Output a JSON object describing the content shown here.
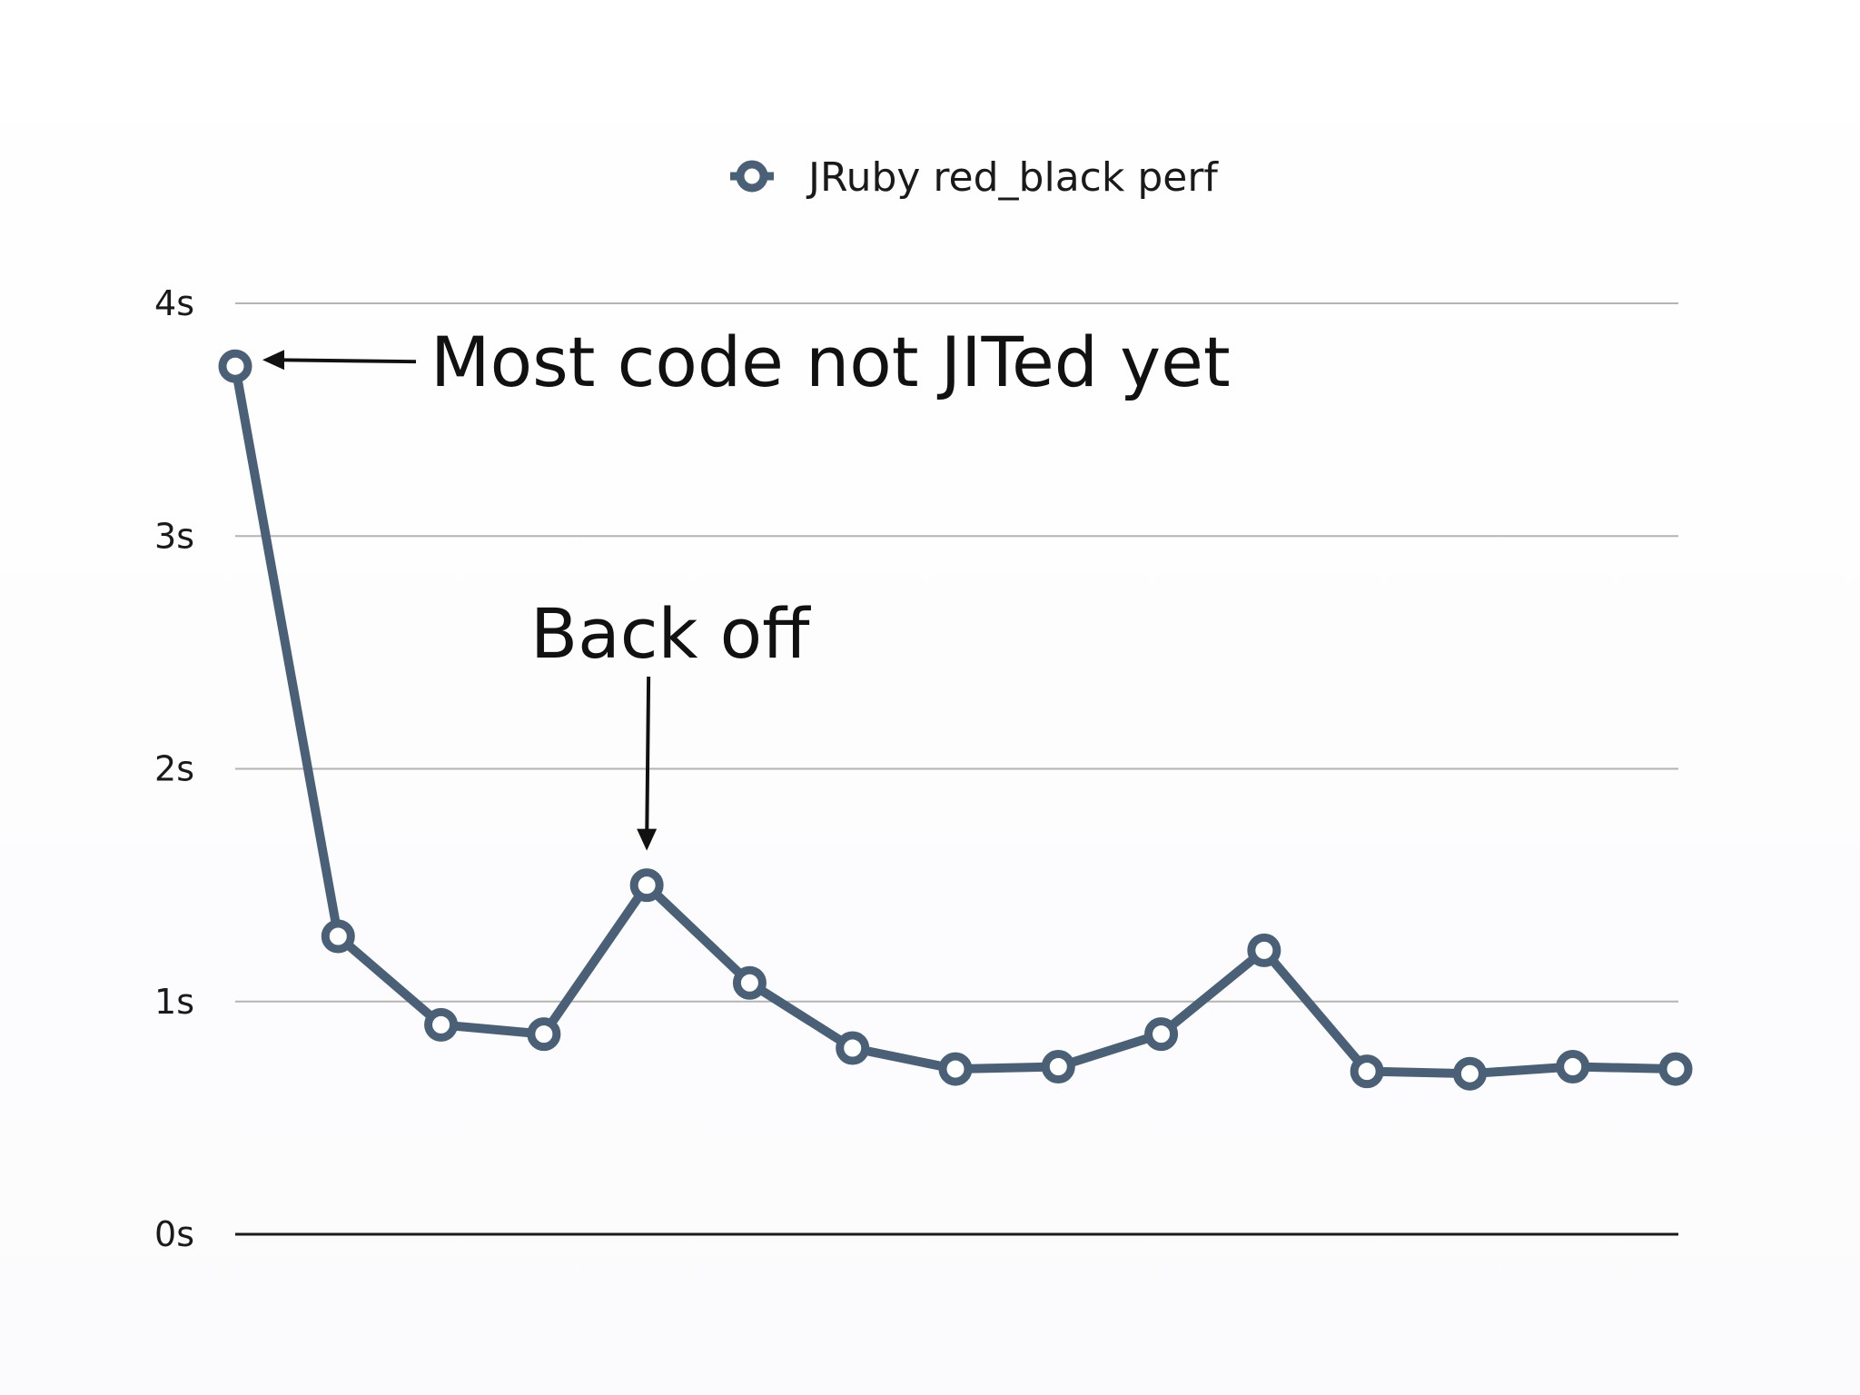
{
  "chart_data": {
    "type": "line",
    "title": "",
    "xlabel": "",
    "ylabel": "",
    "ylim": [
      0,
      4
    ],
    "y_ticks": [
      "0s",
      "1s",
      "2s",
      "3s",
      "4s"
    ],
    "grid": true,
    "legend_position": "top-center",
    "x": [
      1,
      2,
      3,
      4,
      5,
      6,
      7,
      8,
      9,
      10,
      11,
      12,
      13,
      14,
      15
    ],
    "series": [
      {
        "name": "JRuby red_black perf",
        "values": [
          3.73,
          1.28,
          0.9,
          0.86,
          1.5,
          1.08,
          0.8,
          0.71,
          0.72,
          0.86,
          1.22,
          0.7,
          0.69,
          0.72,
          0.71
        ]
      }
    ],
    "annotations": [
      {
        "text": "Most code not JITed yet",
        "point_index": 0
      },
      {
        "text": "Back off",
        "point_index": 4
      }
    ]
  },
  "colors": {
    "series": "#4a6077",
    "grid": "#b4b4b4",
    "axis": "#1a1a1a",
    "marker_fill": "#ffffff",
    "text": "#1a1a1a"
  }
}
